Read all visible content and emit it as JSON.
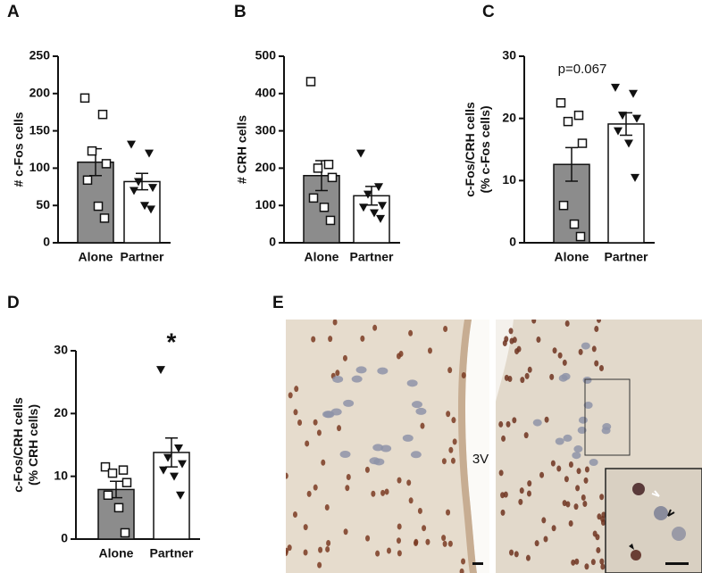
{
  "chart_data": [
    {
      "type": "bar",
      "panel": "A",
      "y_label": [
        "# c-Fos cells"
      ],
      "categories": [
        "Alone",
        "Partner"
      ],
      "values": [
        108,
        82
      ],
      "errors": [
        18,
        11
      ],
      "colors": [
        "#8c8c8c",
        "#ffffff"
      ],
      "markers": [
        "square",
        "triangle-down"
      ],
      "points": [
        [
          194,
          172,
          123,
          106,
          84,
          49,
          33
        ],
        [
          132,
          120,
          82,
          74,
          70,
          50,
          45
        ]
      ],
      "ylim": [
        0,
        250
      ],
      "yticks": [
        0,
        50,
        100,
        150,
        200,
        250
      ]
    },
    {
      "type": "bar",
      "panel": "B",
      "y_label": [
        "# CRH cells"
      ],
      "categories": [
        "Alone",
        "Partner"
      ],
      "values": [
        180,
        126
      ],
      "errors": [
        40,
        25
      ],
      "colors": [
        "#8c8c8c",
        "#ffffff"
      ],
      "markers": [
        "square",
        "triangle-down"
      ],
      "points": [
        [
          432,
          210,
          200,
          175,
          120,
          95,
          60
        ],
        [
          240,
          150,
          130,
          100,
          95,
          80,
          65
        ]
      ],
      "ylim": [
        0,
        500
      ],
      "yticks": [
        0,
        100,
        200,
        300,
        400,
        500
      ]
    },
    {
      "type": "bar",
      "panel": "C",
      "y_label": [
        "c-Fos/CRH cells",
        "(% c-Fos cells)"
      ],
      "categories": [
        "Alone",
        "Partner"
      ],
      "values": [
        12.6,
        19.1
      ],
      "errors": [
        2.7,
        1.8
      ],
      "colors": [
        "#8c8c8c",
        "#ffffff"
      ],
      "markers": [
        "square",
        "triangle-down"
      ],
      "points": [
        [
          22.5,
          20.5,
          19.5,
          16,
          6,
          3,
          1
        ],
        [
          25,
          24,
          20.5,
          20,
          18,
          16,
          10.5
        ]
      ],
      "ylim": [
        0,
        30
      ],
      "yticks": [
        0,
        10,
        20,
        30
      ],
      "annotation": "p=0.067"
    },
    {
      "type": "bar",
      "panel": "D",
      "y_label": [
        "c-Fos/CRH cells",
        "(% CRH cells)"
      ],
      "categories": [
        "Alone",
        "Partner"
      ],
      "values": [
        7.9,
        13.8
      ],
      "errors": [
        1.3,
        2.3
      ],
      "colors": [
        "#8c8c8c",
        "#ffffff"
      ],
      "markers": [
        "square",
        "triangle-down"
      ],
      "points": [
        [
          11.5,
          11,
          10.5,
          9,
          7,
          5,
          1
        ],
        [
          27,
          14.5,
          13,
          12,
          11,
          10,
          7
        ]
      ],
      "ylim": [
        0,
        30
      ],
      "yticks": [
        0,
        10,
        20,
        30
      ],
      "annotation": "*"
    }
  ],
  "image_panel": {
    "panel": "E",
    "label": "3V"
  }
}
